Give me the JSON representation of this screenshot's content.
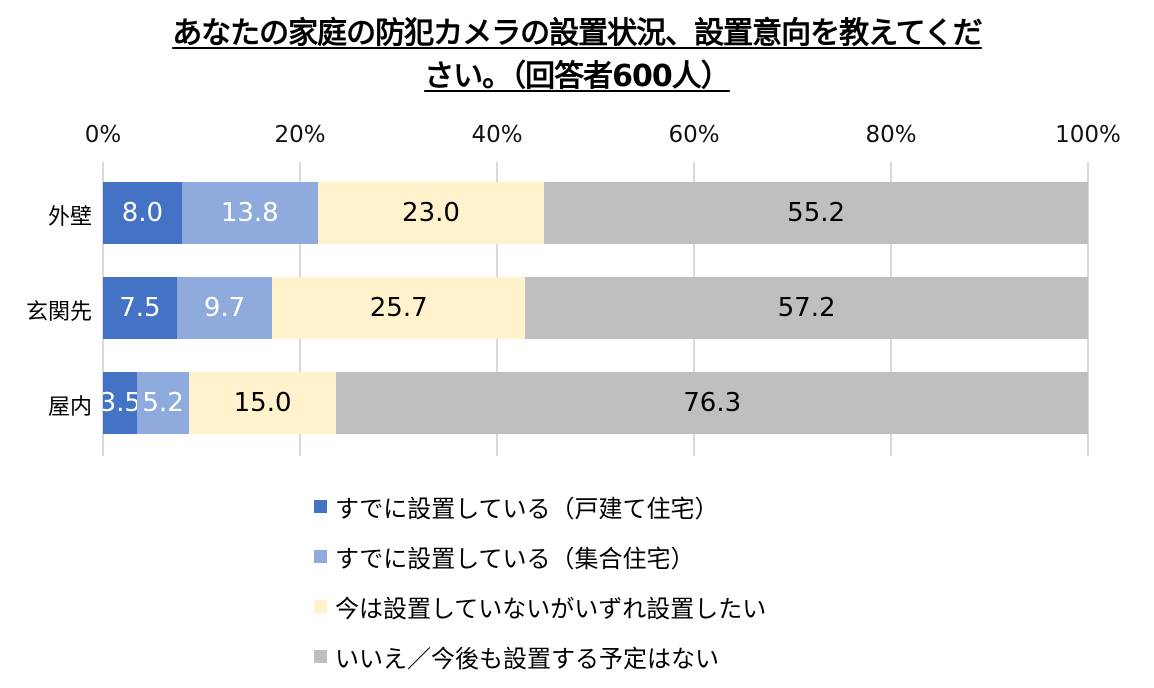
{
  "title": {
    "line1": "あなたの家庭の防犯カメラの設置状況、設置意向を教えてくだ",
    "line2": "さい。（回答者600人）"
  },
  "axis": {
    "ticks": [
      "0%",
      "20%",
      "40%",
      "60%",
      "80%",
      "100%"
    ]
  },
  "categories": [
    "外壁",
    "玄関先",
    "屋内"
  ],
  "legend": [
    {
      "label": "すでに設置している（戸建て住宅）",
      "color": "#4472c4"
    },
    {
      "label": "すでに設置している（集合住宅）",
      "color": "#8faadc"
    },
    {
      "label": "今は設置していないがいずれ設置したい",
      "color": "#fff2cc"
    },
    {
      "label": "いいえ／今後も設置する予定はない",
      "color": "#bfbfbf"
    }
  ],
  "rows": [
    {
      "label": "外壁",
      "values": [
        "8.0",
        "13.8",
        "23.0",
        "55.2"
      ]
    },
    {
      "label": "玄関先",
      "values": [
        "7.5",
        "9.7",
        "25.7",
        "57.2"
      ]
    },
    {
      "label": "屋内",
      "values": [
        "3.5",
        "5.2",
        "15.0",
        "76.3"
      ]
    }
  ],
  "chart_data": {
    "type": "bar",
    "orientation": "horizontal",
    "stacked": "percent",
    "title": "あなたの家庭の防犯カメラの設置状況、設置意向を教えてください。（回答者600人）",
    "categories": [
      "外壁",
      "玄関先",
      "屋内"
    ],
    "series": [
      {
        "name": "すでに設置している（戸建て住宅）",
        "color": "#4472c4",
        "values": [
          8.0,
          7.5,
          3.5
        ]
      },
      {
        "name": "すでに設置している（集合住宅）",
        "color": "#8faadc",
        "values": [
          13.8,
          9.7,
          5.2
        ]
      },
      {
        "name": "今は設置していないがいずれ設置したい",
        "color": "#fff2cc",
        "values": [
          23.0,
          25.7,
          15.0
        ]
      },
      {
        "name": "いいえ／今後も設置する予定はない",
        "color": "#bfbfbf",
        "values": [
          55.2,
          57.2,
          76.3
        ]
      }
    ],
    "xlabel": "",
    "ylabel": "",
    "xlim": [
      0,
      100
    ],
    "xticks": [
      "0%",
      "20%",
      "40%",
      "60%",
      "80%",
      "100%"
    ],
    "xaxis_position": "top",
    "grid": true,
    "legend_position": "bottom",
    "data_labels": true
  }
}
